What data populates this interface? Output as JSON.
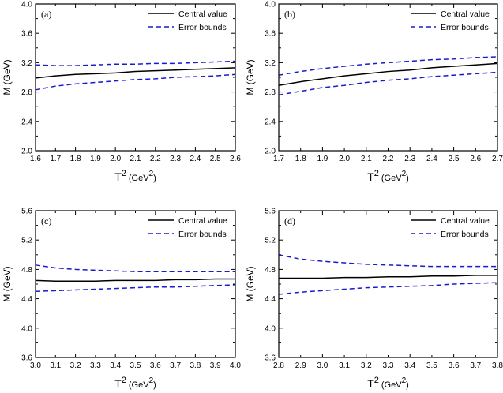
{
  "figure": {
    "panels": [
      {
        "tag": "(a)",
        "ylabel": "M (GeV)",
        "xlabel": {
          "base": "T",
          "sup1": "2",
          "unit_open": "(GeV",
          "sup2": "2",
          "unit_close": ")"
        }
      },
      {
        "tag": "(b)",
        "ylabel": "M (GeV)",
        "xlabel": {
          "base": "T",
          "sup1": "2",
          "unit_open": "(GeV",
          "sup2": "2",
          "unit_close": ")"
        }
      },
      {
        "tag": "(c)",
        "ylabel": "M (GeV)",
        "xlabel": {
          "base": "T",
          "sup1": "2",
          "unit_open": "(GeV",
          "sup2": "2",
          "unit_close": ")"
        }
      },
      {
        "tag": "(d)",
        "ylabel": "M (GeV)",
        "xlabel": {
          "base": "T",
          "sup1": "2",
          "unit_open": "(GeV",
          "sup2": "2",
          "unit_close": ")"
        }
      }
    ]
  },
  "chart_data": [
    {
      "type": "line",
      "title": "(a)",
      "xlabel": "T2 (GeV2)",
      "ylabel": "M (GeV)",
      "xlim": [
        1.6,
        2.6
      ],
      "ylim": [
        2.0,
        4.0
      ],
      "xticks": [
        "1.6",
        "1.7",
        "1.8",
        "1.9",
        "2.0",
        "2.1",
        "2.2",
        "2.3",
        "2.4",
        "2.5",
        "2.6"
      ],
      "yticks": [
        "2.0",
        "2.4",
        "2.8",
        "3.2",
        "3.6",
        "4.0"
      ],
      "legend_position": "top-right",
      "x": [
        1.6,
        1.7,
        1.8,
        1.9,
        2.0,
        2.1,
        2.2,
        2.3,
        2.4,
        2.5,
        2.6
      ],
      "series": [
        {
          "name": "Central  value",
          "style": "solid",
          "color": "#000000",
          "values": [
            2.99,
            3.02,
            3.04,
            3.05,
            3.06,
            3.08,
            3.09,
            3.1,
            3.11,
            3.12,
            3.13
          ]
        },
        {
          "name": "Error bounds",
          "style": "dashed",
          "color": "#1a1acc",
          "values": [
            3.17,
            3.16,
            3.16,
            3.17,
            3.18,
            3.18,
            3.19,
            3.19,
            3.2,
            3.21,
            3.22
          ]
        },
        {
          "name": "",
          "style": "dashed",
          "color": "#1a1acc",
          "values": [
            2.83,
            2.88,
            2.91,
            2.93,
            2.95,
            2.97,
            2.98,
            3.0,
            3.01,
            3.02,
            3.04
          ]
        }
      ]
    },
    {
      "type": "line",
      "title": "(b)",
      "xlabel": "T2 (GeV2)",
      "ylabel": "M (GeV)",
      "xlim": [
        1.7,
        2.7
      ],
      "ylim": [
        2.0,
        4.0
      ],
      "xticks": [
        "1.7",
        "1.8",
        "1.9",
        "2.0",
        "2.1",
        "2.2",
        "2.3",
        "2.4",
        "2.5",
        "2.6",
        "2.7"
      ],
      "yticks": [
        "2.0",
        "2.4",
        "2.8",
        "3.2",
        "3.6",
        "4.0"
      ],
      "legend_position": "top-right",
      "x": [
        1.7,
        1.8,
        1.9,
        2.0,
        2.1,
        2.2,
        2.3,
        2.4,
        2.5,
        2.6,
        2.7
      ],
      "series": [
        {
          "name": "Central value",
          "style": "solid",
          "color": "#000000",
          "values": [
            2.89,
            2.94,
            2.98,
            3.02,
            3.05,
            3.08,
            3.1,
            3.13,
            3.15,
            3.17,
            3.19
          ]
        },
        {
          "name": "Error bounds",
          "style": "dashed",
          "color": "#1a1acc",
          "values": [
            3.03,
            3.08,
            3.12,
            3.15,
            3.18,
            3.2,
            3.22,
            3.24,
            3.25,
            3.27,
            3.28
          ]
        },
        {
          "name": "",
          "style": "dashed",
          "color": "#1a1acc",
          "values": [
            2.76,
            2.81,
            2.86,
            2.89,
            2.93,
            2.96,
            2.98,
            3.01,
            3.03,
            3.05,
            3.07
          ]
        }
      ]
    },
    {
      "type": "line",
      "title": "(c)",
      "xlabel": "T2 (GeV2)",
      "ylabel": "M (GeV)",
      "xlim": [
        3.0,
        4.0
      ],
      "ylim": [
        3.6,
        5.6
      ],
      "xticks": [
        "3.0",
        "3.1",
        "3.2",
        "3.3",
        "3.4",
        "3.5",
        "3.6",
        "3.7",
        "3.8",
        "3.9",
        "4.0"
      ],
      "yticks": [
        "3.6",
        "4.0",
        "4.4",
        "4.8",
        "5.2",
        "5.6"
      ],
      "legend_position": "top-right",
      "x": [
        3.0,
        3.1,
        3.2,
        3.3,
        3.4,
        3.5,
        3.6,
        3.7,
        3.8,
        3.9,
        4.0
      ],
      "series": [
        {
          "name": "Central value",
          "style": "solid",
          "color": "#000000",
          "values": [
            4.65,
            4.64,
            4.64,
            4.64,
            4.65,
            4.65,
            4.65,
            4.66,
            4.66,
            4.67,
            4.67
          ]
        },
        {
          "name": "Error bounds",
          "style": "dashed",
          "color": "#1a1acc",
          "values": [
            4.86,
            4.82,
            4.8,
            4.79,
            4.78,
            4.77,
            4.77,
            4.77,
            4.77,
            4.77,
            4.77
          ]
        },
        {
          "name": "",
          "style": "dashed",
          "color": "#1a1acc",
          "values": [
            4.5,
            4.51,
            4.52,
            4.53,
            4.54,
            4.55,
            4.56,
            4.56,
            4.57,
            4.58,
            4.59
          ]
        }
      ]
    },
    {
      "type": "line",
      "title": "(d)",
      "xlabel": "T2 (GeV2)",
      "ylabel": "M (GeV)",
      "xlim": [
        2.8,
        3.8
      ],
      "ylim": [
        3.6,
        5.6
      ],
      "xticks": [
        "2.8",
        "2.9",
        "3.0",
        "3.1",
        "3.2",
        "3.3",
        "3.4",
        "3.5",
        "3.6",
        "3.7",
        "3.8"
      ],
      "yticks": [
        "3.6",
        "4.0",
        "4.4",
        "4.8",
        "5.2",
        "5.6"
      ],
      "legend_position": "top-right",
      "x": [
        2.8,
        2.9,
        3.0,
        3.1,
        3.2,
        3.3,
        3.4,
        3.5,
        3.6,
        3.7,
        3.8
      ],
      "series": [
        {
          "name": "Central value",
          "style": "solid",
          "color": "#000000",
          "values": [
            4.68,
            4.68,
            4.68,
            4.69,
            4.69,
            4.7,
            4.7,
            4.71,
            4.71,
            4.72,
            4.72
          ]
        },
        {
          "name": "Error bounds",
          "style": "dashed",
          "color": "#1a1acc",
          "values": [
            5.0,
            4.94,
            4.91,
            4.89,
            4.87,
            4.86,
            4.85,
            4.84,
            4.84,
            4.84,
            4.84
          ]
        },
        {
          "name": "",
          "style": "dashed",
          "color": "#1a1acc",
          "values": [
            4.46,
            4.49,
            4.51,
            4.53,
            4.55,
            4.56,
            4.57,
            4.58,
            4.6,
            4.61,
            4.62
          ]
        }
      ]
    }
  ]
}
